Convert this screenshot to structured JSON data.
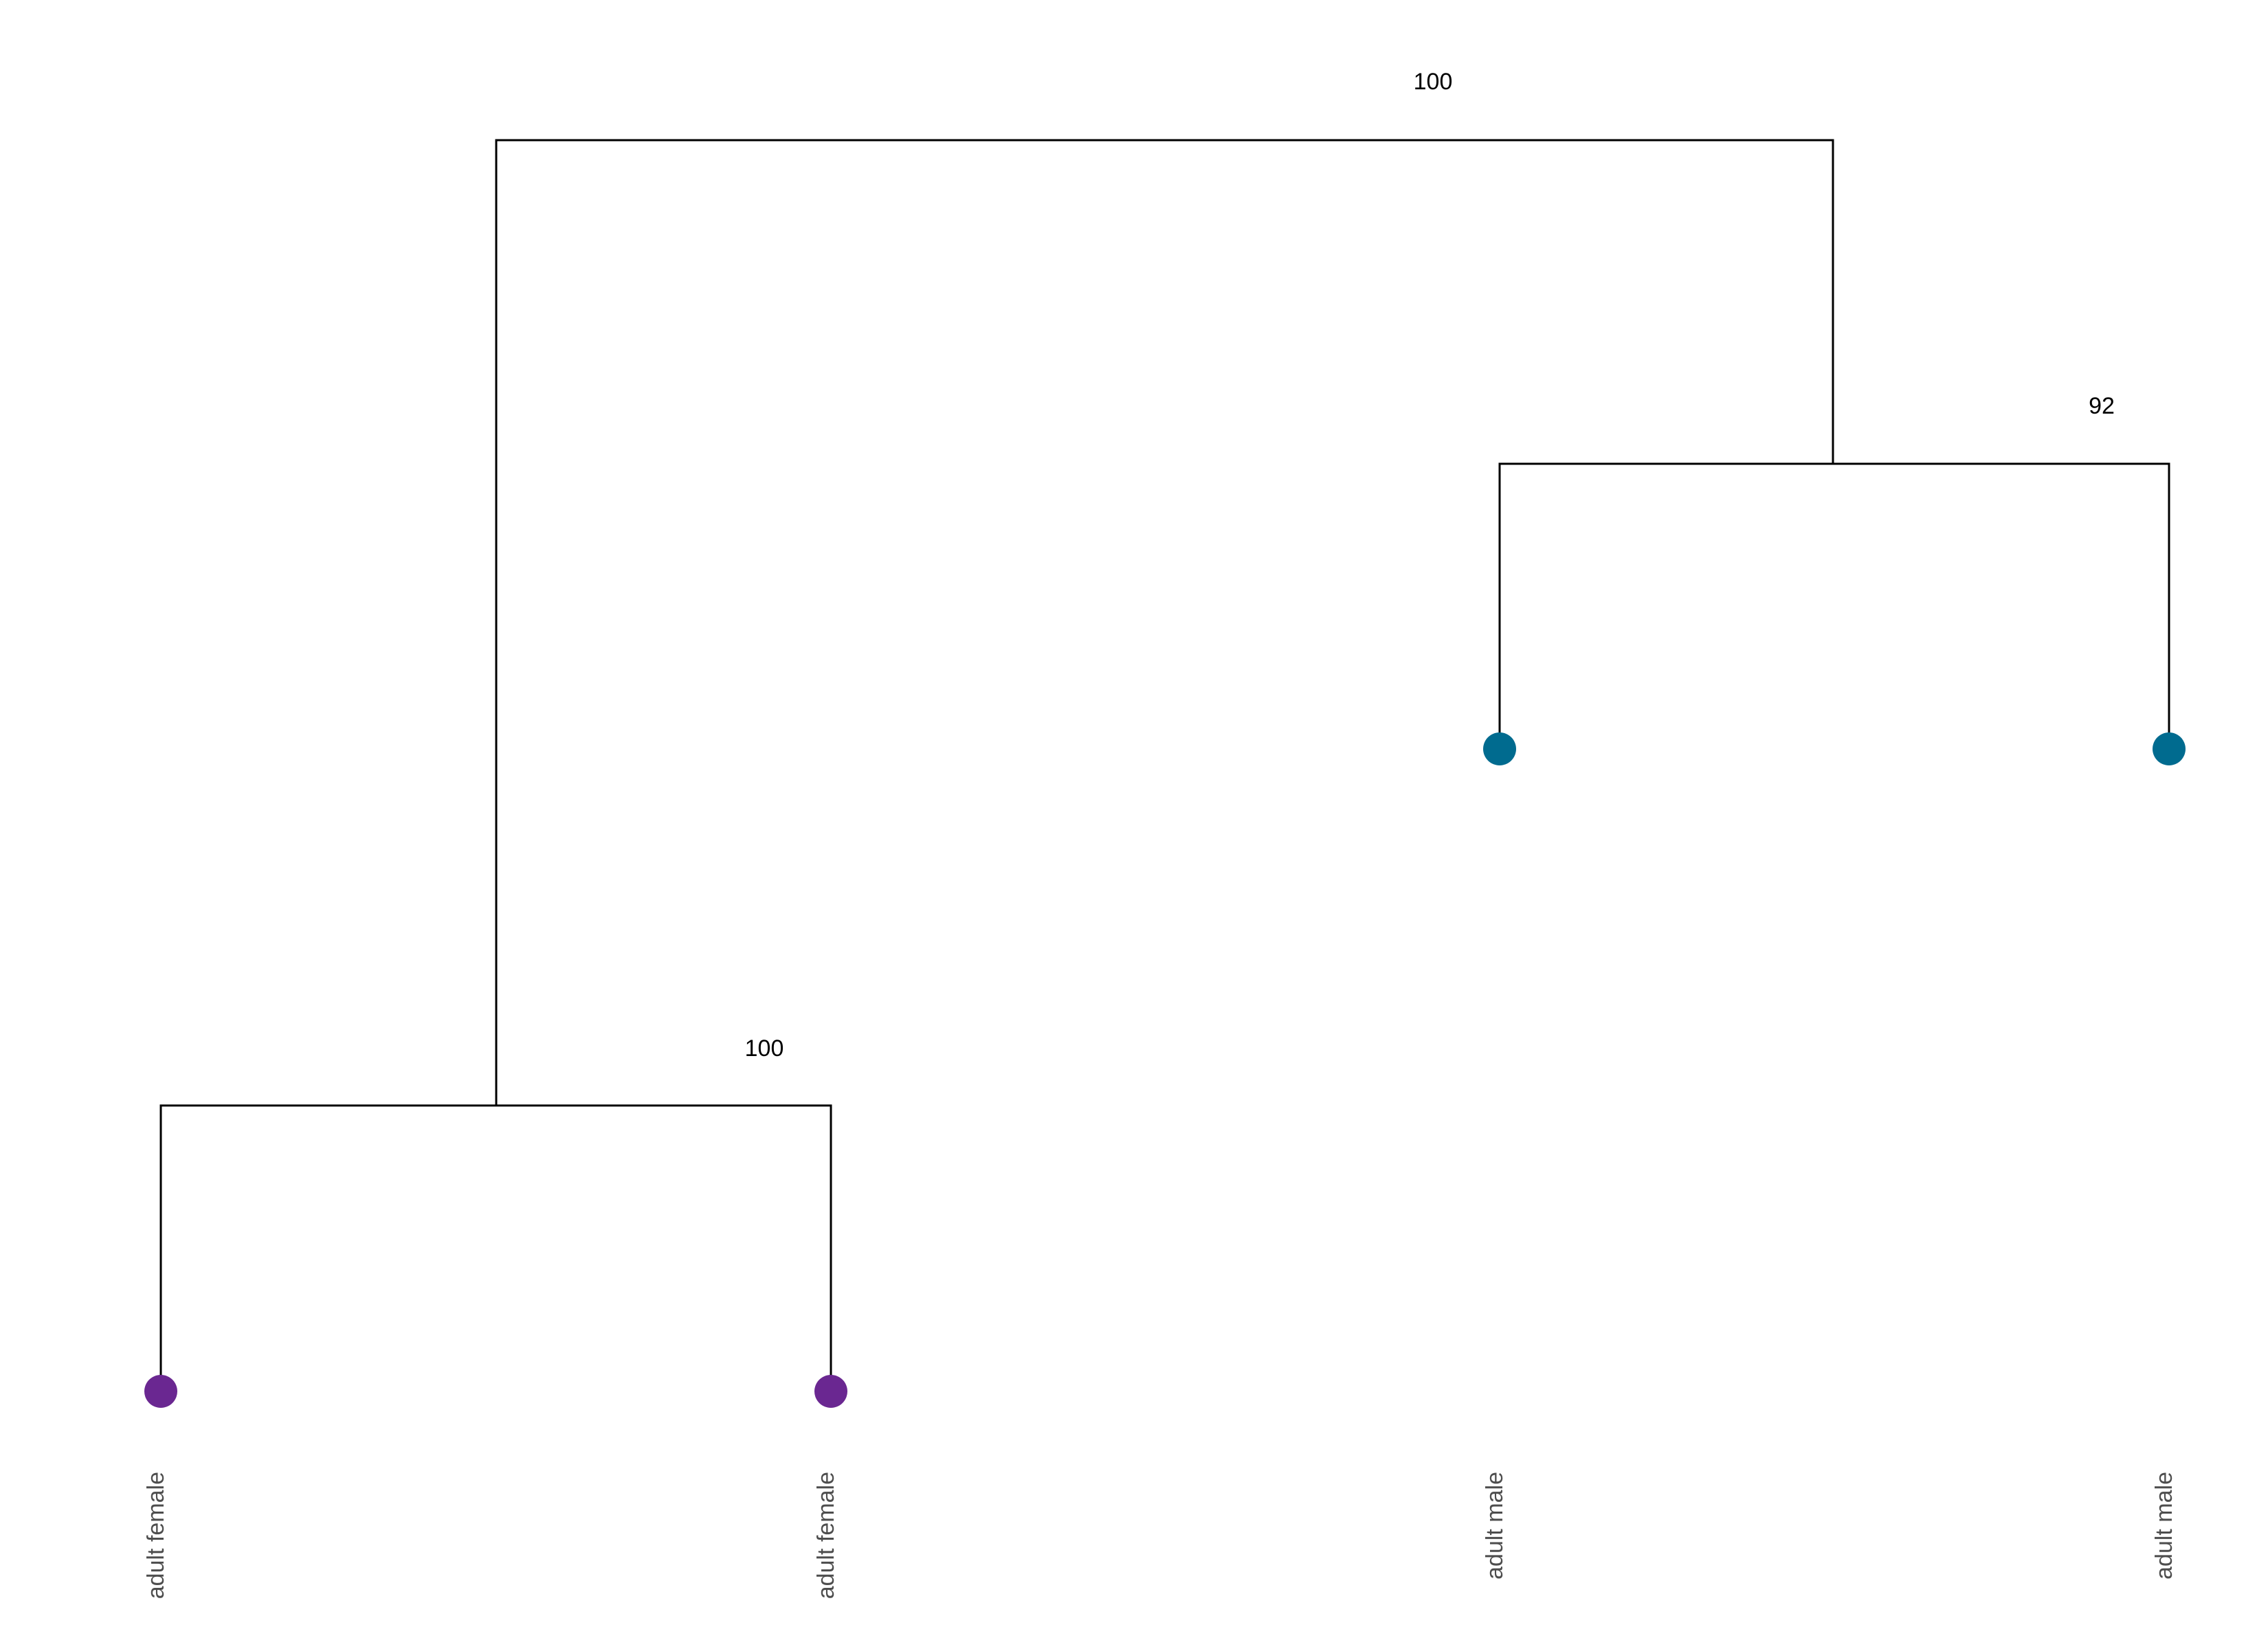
{
  "tree": {
    "leaves": [
      {
        "label": "adult female",
        "group": "female"
      },
      {
        "label": "adult female",
        "group": "female"
      },
      {
        "label": "adult male",
        "group": "male"
      },
      {
        "label": "adult male",
        "group": "male"
      }
    ],
    "clades": [
      {
        "support": "100",
        "children": [
          "leaf-1",
          "leaf-2"
        ]
      },
      {
        "support": "92",
        "children": [
          "leaf-3",
          "leaf-4"
        ]
      },
      {
        "support": "100",
        "children": [
          "clade-1",
          "clade-2"
        ]
      }
    ]
  },
  "colors": {
    "female": "#6a2791",
    "male": "#006b8f",
    "branch": "#000000",
    "support_text": "#000000",
    "leaf_text": "#4d4d4d"
  }
}
